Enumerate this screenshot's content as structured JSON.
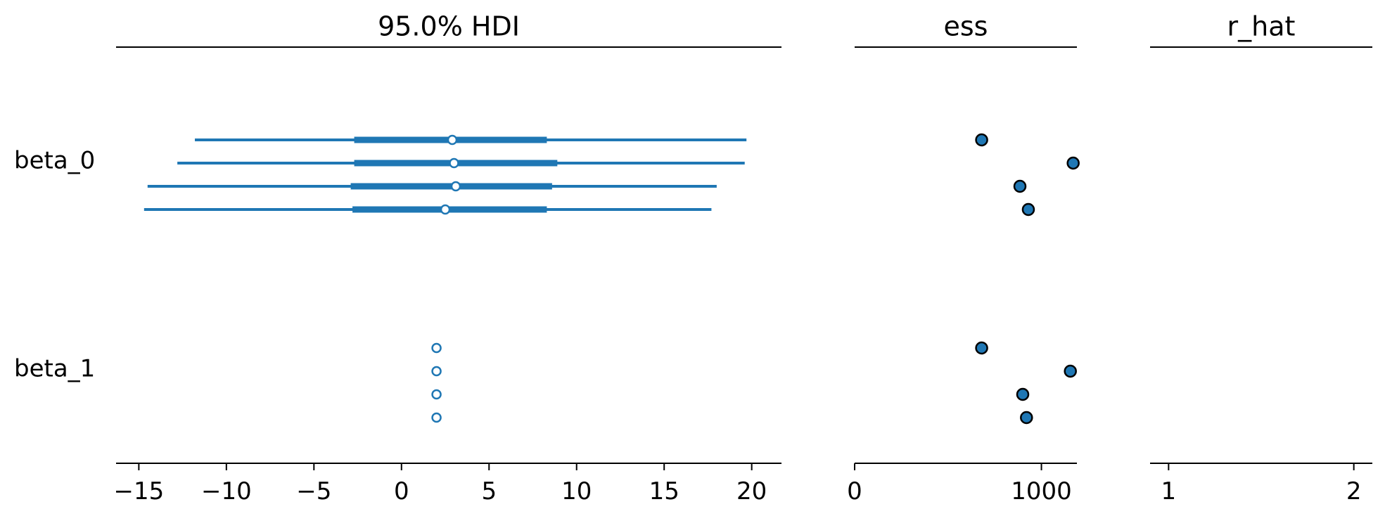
{
  "chart_data": {
    "type": "forest",
    "variables": [
      "beta_0",
      "beta_1"
    ],
    "chains": 4,
    "panels": [
      {
        "id": "hdi",
        "title": "95.0% HDI",
        "xlim": [
          -16.3,
          21.7
        ],
        "ticks": [
          -15,
          -10,
          -5,
          0,
          5,
          10,
          15,
          20
        ],
        "tick_labels": [
          "−15",
          "−10",
          "−5",
          "0",
          "5",
          "10",
          "15",
          "20"
        ],
        "rows": [
          {
            "variable": "beta_0",
            "chains": [
              {
                "chain": 0,
                "hdi_low": -11.8,
                "hdi_high": 19.7,
                "iqr_low": -2.7,
                "iqr_high": 8.3,
                "median": 2.9
              },
              {
                "chain": 1,
                "hdi_low": -12.8,
                "hdi_high": 19.6,
                "iqr_low": -2.7,
                "iqr_high": 8.9,
                "median": 3.0
              },
              {
                "chain": 2,
                "hdi_low": -14.5,
                "hdi_high": 18.0,
                "iqr_low": -2.9,
                "iqr_high": 8.6,
                "median": 3.1
              },
              {
                "chain": 3,
                "hdi_low": -14.7,
                "hdi_high": 17.7,
                "iqr_low": -2.8,
                "iqr_high": 8.3,
                "median": 2.5
              }
            ]
          },
          {
            "variable": "beta_1",
            "chains": [
              {
                "chain": 0,
                "hdi_low": 2.0,
                "hdi_high": 2.0,
                "iqr_low": 2.0,
                "iqr_high": 2.0,
                "median": 2.0
              },
              {
                "chain": 1,
                "hdi_low": 2.0,
                "hdi_high": 2.0,
                "iqr_low": 2.0,
                "iqr_high": 2.0,
                "median": 2.0
              },
              {
                "chain": 2,
                "hdi_low": 2.0,
                "hdi_high": 2.0,
                "iqr_low": 2.0,
                "iqr_high": 2.0,
                "median": 2.0
              },
              {
                "chain": 3,
                "hdi_low": 2.0,
                "hdi_high": 2.0,
                "iqr_low": 2.0,
                "iqr_high": 2.0,
                "median": 2.0
              }
            ]
          }
        ]
      },
      {
        "id": "ess",
        "title": "ess",
        "xlim": [
          0,
          1190
        ],
        "ticks": [
          0,
          1000
        ],
        "tick_labels": [
          "0",
          "1000"
        ],
        "rows": [
          {
            "variable": "beta_0",
            "values": [
              680,
              1170,
              885,
              930
            ]
          },
          {
            "variable": "beta_1",
            "values": [
              680,
              1155,
              900,
              920
            ]
          }
        ]
      },
      {
        "id": "r_hat",
        "title": "r_hat",
        "xlim": [
          0.9,
          2.1
        ],
        "ticks": [
          1,
          2
        ],
        "tick_labels": [
          "1",
          "2"
        ],
        "rows": []
      }
    ],
    "colors": {
      "line": "#1f77b4",
      "marker_face": "#1f77b4",
      "marker_edge": "#000000",
      "median_face": "#ffffff",
      "axis": "#000000"
    },
    "grid": false,
    "legend": "none"
  }
}
